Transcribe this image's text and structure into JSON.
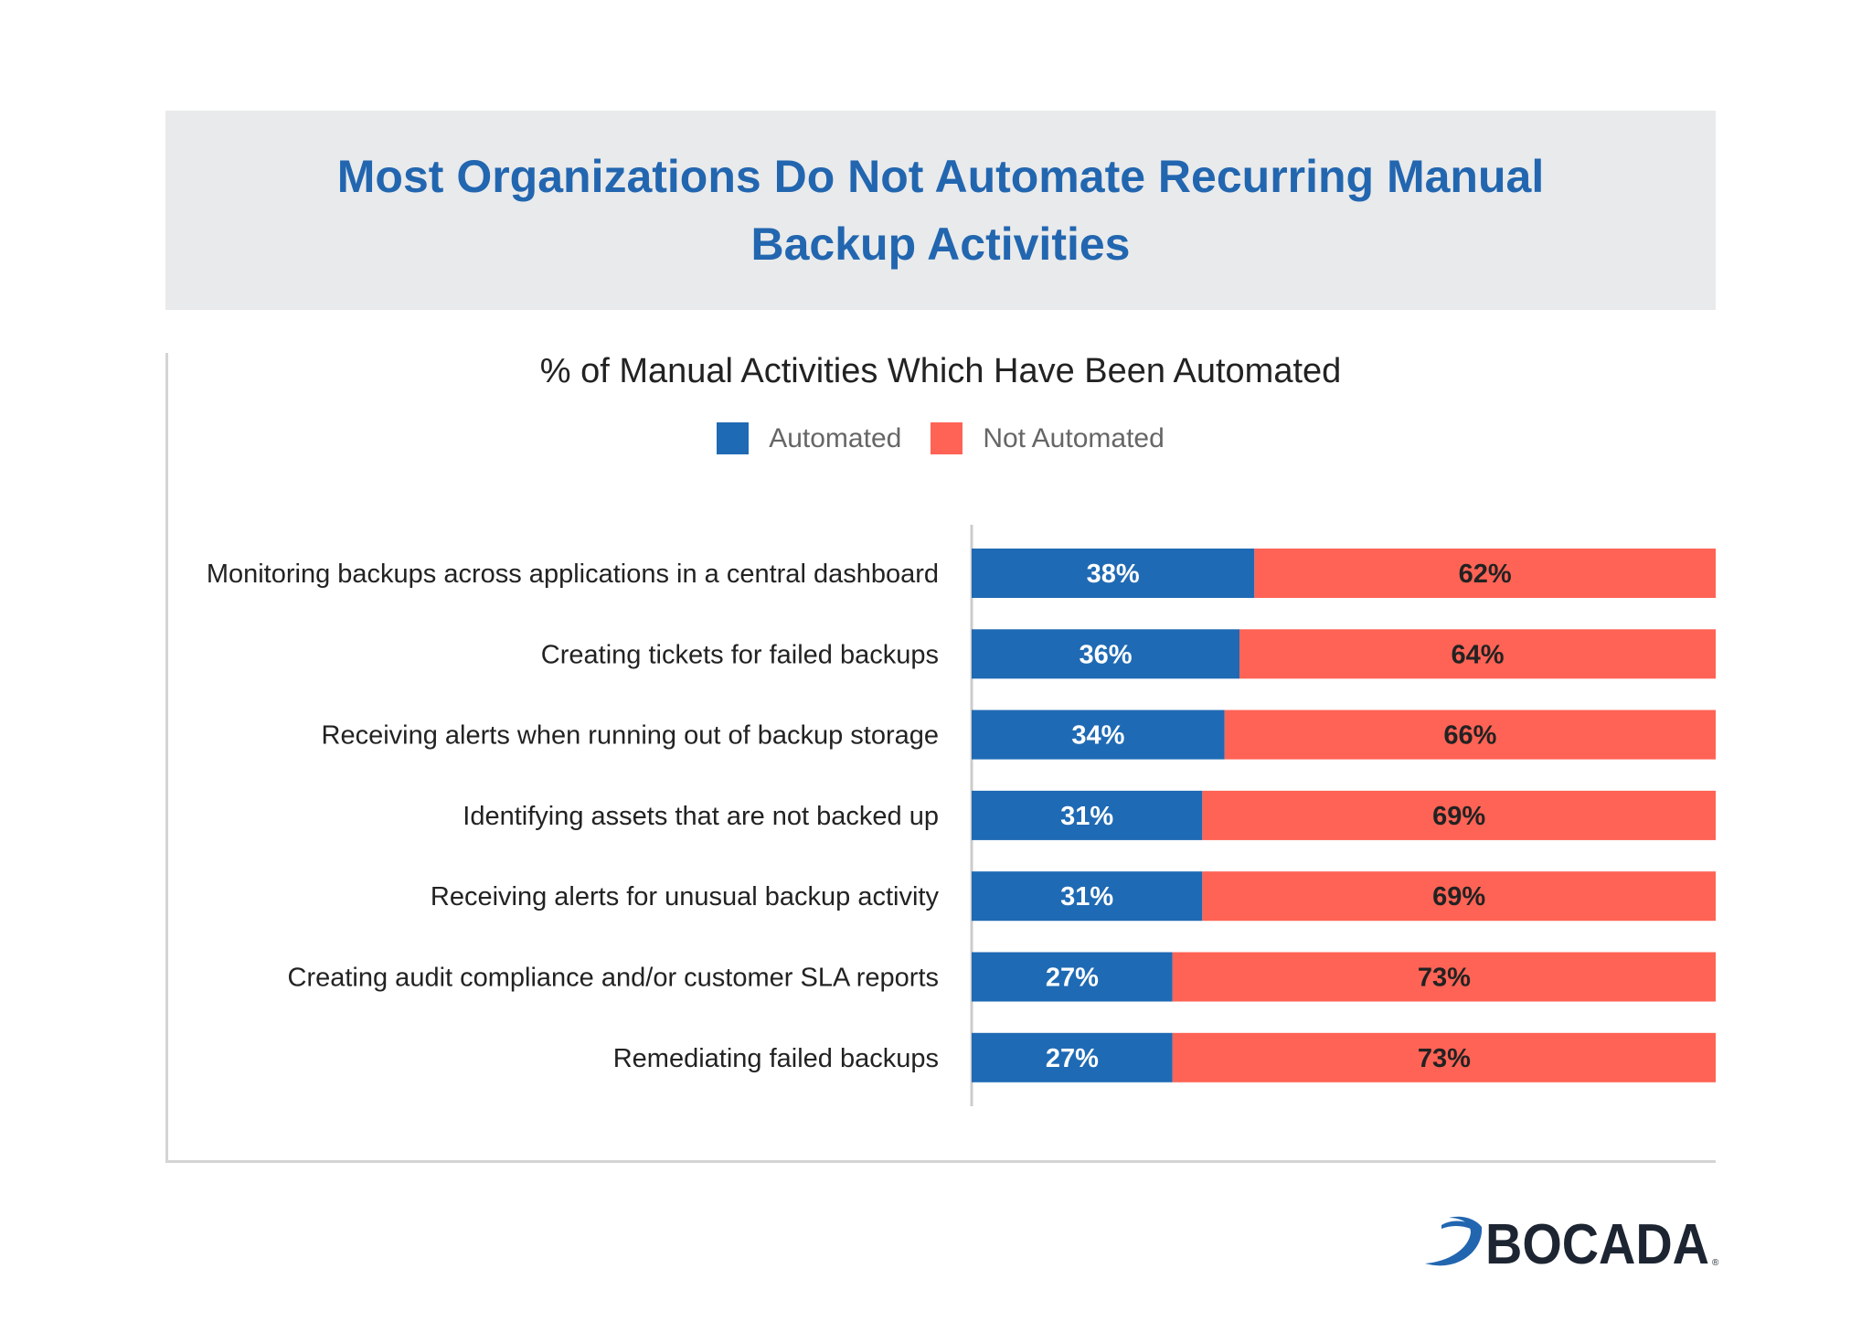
{
  "title": "Most Organizations Do Not Automate Recurring Manual Backup Activities",
  "brand": {
    "logo_text": "BOCADA",
    "logo_color": "#1d2532",
    "swoosh_color": "#2266b0"
  },
  "colors": {
    "automated": "#1f6ab4",
    "not_automated": "#ff6355",
    "title": "#2266b0"
  },
  "chart_data": {
    "type": "bar",
    "orientation": "horizontal",
    "stacked": true,
    "title": "% of Manual Activities Which Have Been Automated",
    "categories": [
      "Monitoring backups across applications in a central dashboard",
      "Creating tickets for failed backups",
      "Receiving alerts when running out of backup storage",
      "Identifying assets that are not backed up",
      "Receiving alerts for unusual backup activity",
      "Creating audit compliance and/or customer SLA reports",
      "Remediating failed backups"
    ],
    "series": [
      {
        "name": "Automated",
        "values": [
          38,
          36,
          34,
          31,
          31,
          27,
          27
        ],
        "labels": [
          "38%",
          "36%",
          "34%",
          "31%",
          "31%",
          "27%",
          "27%"
        ]
      },
      {
        "name": "Not Automated",
        "values": [
          62,
          64,
          66,
          69,
          69,
          73,
          73
        ],
        "labels": [
          "62%",
          "64%",
          "66%",
          "69%",
          "69%",
          "73%",
          "73%"
        ]
      }
    ],
    "xlim": [
      0,
      100
    ],
    "unit": "%",
    "legend_position": "top-center",
    "grid": false
  }
}
